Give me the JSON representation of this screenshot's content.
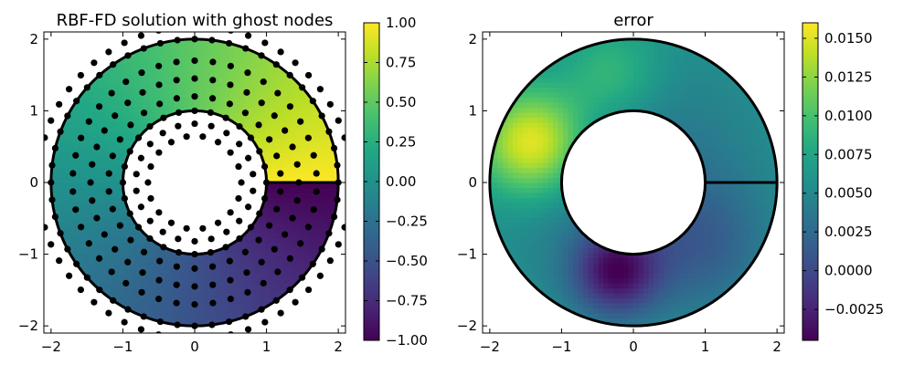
{
  "chart_data": [
    {
      "type": "heatmap",
      "title": "RBF-FD solution with ghost nodes",
      "xlabel": "",
      "ylabel": "",
      "xlim": [
        -2.1,
        2.1
      ],
      "ylim": [
        -2.1,
        2.1
      ],
      "xticks": [
        -2,
        -1,
        0,
        1,
        2
      ],
      "yticks": [
        -2,
        -1,
        0,
        1,
        2
      ],
      "domain": {
        "shape": "annulus",
        "inner_radius": 1.0,
        "outer_radius": 2.0,
        "center": [
          0,
          0
        ]
      },
      "colormap": "viridis",
      "color_range": [
        -1.0,
        1.0
      ],
      "colorbar_ticks": [
        "1.00",
        "0.75",
        "0.50",
        "0.25",
        "0.00",
        "−0.25",
        "−0.50",
        "−0.75",
        "−1.00"
      ],
      "colorbar_values": [
        1.0,
        0.75,
        0.5,
        0.25,
        0.0,
        -0.25,
        -0.5,
        -0.75,
        -1.0
      ],
      "node_rings": [
        {
          "radius": 0.65,
          "count": 18
        },
        {
          "radius": 0.82,
          "count": 22
        },
        {
          "radius": 1.0,
          "count": 28
        },
        {
          "radius": 1.2,
          "count": 30
        },
        {
          "radius": 1.45,
          "count": 36
        },
        {
          "radius": 1.7,
          "count": 42
        },
        {
          "radius": 2.0,
          "count": 52
        },
        {
          "radius": 2.18,
          "count": 54
        }
      ],
      "grid": false
    },
    {
      "type": "heatmap",
      "title": "error",
      "xlabel": "",
      "ylabel": "",
      "xlim": [
        -2.1,
        2.1
      ],
      "ylim": [
        -2.1,
        2.1
      ],
      "xticks": [
        -2,
        -1,
        0,
        1,
        2
      ],
      "yticks": [
        -2,
        -1,
        0,
        1,
        2
      ],
      "domain": {
        "shape": "annulus",
        "inner_radius": 1.0,
        "outer_radius": 2.0,
        "center": [
          0,
          0
        ]
      },
      "colormap": "viridis",
      "color_range": [
        -0.0045,
        0.016
      ],
      "colorbar_ticks": [
        "0.0150",
        "0.0125",
        "0.0100",
        "0.0075",
        "0.0050",
        "0.0025",
        "0.0000",
        "−0.0025"
      ],
      "colorbar_values": [
        0.015,
        0.0125,
        0.01,
        0.0075,
        0.005,
        0.0025,
        0.0,
        -0.0025
      ],
      "grid": false
    }
  ],
  "colors": {
    "viridis": [
      "#440154",
      "#482475",
      "#414487",
      "#355f8d",
      "#2a788e",
      "#21918c",
      "#22a884",
      "#44bf70",
      "#7ad151",
      "#bddf26",
      "#fde725"
    ],
    "node": "#000000",
    "axes": "#000000"
  }
}
